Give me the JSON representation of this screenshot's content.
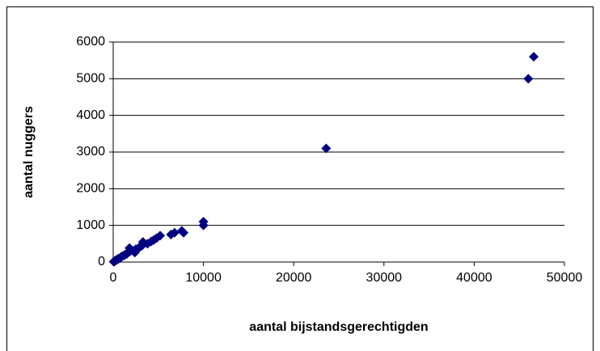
{
  "chart_data": {
    "type": "scatter",
    "xlabel": "aantal bijstandsgerechtigden",
    "ylabel": "aantal nuggers",
    "color": "#000080",
    "x": [
      46600,
      46000,
      23600,
      10000,
      10000,
      7800,
      7600,
      6800,
      6400,
      5200,
      4800,
      4500,
      4200,
      3800,
      3300,
      3200,
      3000,
      2800,
      2500,
      2200,
      2000,
      1800,
      1600,
      1500,
      1300,
      1200,
      1000,
      900,
      800,
      700,
      600,
      500,
      400,
      300,
      250,
      200,
      150,
      100,
      50,
      1800,
      2400
    ],
    "values": [
      5600,
      5000,
      3100,
      1100,
      1000,
      800,
      850,
      800,
      750,
      720,
      650,
      600,
      560,
      500,
      550,
      450,
      420,
      380,
      350,
      300,
      330,
      280,
      250,
      220,
      200,
      180,
      160,
      140,
      120,
      100,
      90,
      80,
      60,
      50,
      40,
      30,
      20,
      15,
      10,
      380,
      260
    ],
    "xlim": [
      0,
      50000
    ],
    "xticks": [
      0,
      10000,
      20000,
      30000,
      40000,
      50000
    ],
    "ylim": [
      0,
      6000
    ],
    "yticks": [
      0,
      1000,
      2000,
      3000,
      4000,
      5000,
      6000
    ],
    "grid": true
  }
}
